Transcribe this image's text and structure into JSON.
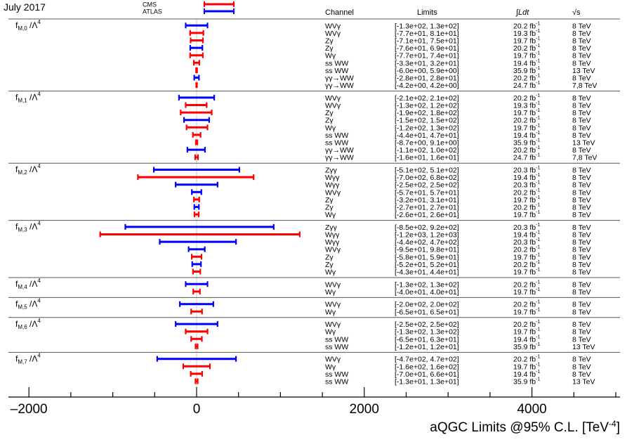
{
  "header": {
    "date": "July 2017",
    "legend": [
      {
        "label": "CMS",
        "color": "#ff0000"
      },
      {
        "label": "ATLAS",
        "color": "#0000ff"
      }
    ]
  },
  "table_headers": {
    "channel": "Channel",
    "limits": "Limits",
    "lumi": "∫Ldt",
    "energy": "√s"
  },
  "colors": {
    "CMS": "#ff0000",
    "ATLAS": "#0000ff"
  },
  "chart_data": {
    "type": "interval",
    "xlabel": "aQGC Limits @95% C.L. [TeV⁻⁴]",
    "xlim": [
      -2500,
      5000
    ],
    "xticks": [
      -2000,
      0,
      2000,
      4000
    ],
    "xtick_labels": [
      "–2000",
      "0",
      "2000",
      "4000"
    ],
    "groups": [
      {
        "label": "fM,0 /Λ4",
        "sub": "M,0",
        "rows": [
          {
            "exp": "ATLAS",
            "channel": "WVγ",
            "limits": "[-1.3e+02, 1.3e+02]",
            "lumi": "20.2 fb-1",
            "energy": "8 TeV",
            "low": -130,
            "high": 130
          },
          {
            "exp": "CMS",
            "channel": "WVγ",
            "limits": "[-7.7e+01, 8.1e+01]",
            "lumi": "19.3 fb-1",
            "energy": "8 TeV",
            "low": -77,
            "high": 81
          },
          {
            "exp": "CMS",
            "channel": "Zγ",
            "limits": "[-7.1e+01, 7.5e+01]",
            "lumi": "19.7 fb-1",
            "energy": "8 TeV",
            "low": -71,
            "high": 75
          },
          {
            "exp": "ATLAS",
            "channel": "Zγ",
            "limits": "[-7.6e+01, 6.9e+01]",
            "lumi": "20.2 fb-1",
            "energy": "8 TeV",
            "low": -76,
            "high": 69
          },
          {
            "exp": "CMS",
            "channel": "Wγ",
            "limits": "[-7.7e+01, 7.4e+01]",
            "lumi": "19.7 fb-1",
            "energy": "8 TeV",
            "low": -77,
            "high": 74
          },
          {
            "exp": "CMS",
            "channel": "ss WW",
            "limits": "[-3.3e+01, 3.2e+01]",
            "lumi": "19.4 fb-1",
            "energy": "8 TeV",
            "low": -33,
            "high": 32
          },
          {
            "exp": "CMS",
            "channel": "ss WW",
            "limits": "[-6.0e+00, 5.9e+00]",
            "lumi": "35.9 fb-1",
            "energy": "13 TeV",
            "low": -6,
            "high": 5.9
          },
          {
            "exp": "ATLAS",
            "channel": "γγ→WW",
            "limits": "[-2.8e+01, 2.8e+01]",
            "lumi": "20.2 fb-1",
            "energy": "8 TeV",
            "low": -28,
            "high": 28
          },
          {
            "exp": "CMS",
            "channel": "γγ→WW",
            "limits": "[-4.2e+00, 4.2e+00]",
            "lumi": "24.7 fb-1",
            "energy": "7,8 TeV",
            "low": -4.2,
            "high": 4.2
          }
        ]
      },
      {
        "label": "fM,1 /Λ4",
        "sub": "M,1",
        "rows": [
          {
            "exp": "ATLAS",
            "channel": "WVγ",
            "limits": "[-2.1e+02, 2.1e+02]",
            "lumi": "20.2 fb-1",
            "energy": "8 TeV",
            "low": -210,
            "high": 210
          },
          {
            "exp": "CMS",
            "channel": "WVγ",
            "limits": "[-1.3e+02, 1.2e+02]",
            "lumi": "19.3 fb-1",
            "energy": "8 TeV",
            "low": -130,
            "high": 120
          },
          {
            "exp": "CMS",
            "channel": "Zγ",
            "limits": "[-1.9e+02, 1.8e+02]",
            "lumi": "19.7 fb-1",
            "energy": "8 TeV",
            "low": -190,
            "high": 180
          },
          {
            "exp": "ATLAS",
            "channel": "Zγ",
            "limits": "[-1.5e+02, 1.5e+02]",
            "lumi": "20.2 fb-1",
            "energy": "8 TeV",
            "low": -150,
            "high": 150
          },
          {
            "exp": "CMS",
            "channel": "Wγ",
            "limits": "[-1.2e+02, 1.3e+02]",
            "lumi": "19.7 fb-1",
            "energy": "8 TeV",
            "low": -120,
            "high": 130
          },
          {
            "exp": "CMS",
            "channel": "ss WW",
            "limits": "[-4.4e+01, 4.7e+01]",
            "lumi": "19.4 fb-1",
            "energy": "8 TeV",
            "low": -44,
            "high": 47
          },
          {
            "exp": "CMS",
            "channel": "ss WW",
            "limits": "[-8.7e+00, 9.1e+00]",
            "lumi": "35.9 fb-1",
            "energy": "13 TeV",
            "low": -8.7,
            "high": 9.1
          },
          {
            "exp": "ATLAS",
            "channel": "γγ→WW",
            "limits": "[-1.1e+02, 1.0e+02]",
            "lumi": "20.2 fb-1",
            "energy": "8 TeV",
            "low": -110,
            "high": 100
          },
          {
            "exp": "CMS",
            "channel": "γγ→WW",
            "limits": "[-1.6e+01, 1.6e+01]",
            "lumi": "24.7 fb-1",
            "energy": "7,8 TeV",
            "low": -16,
            "high": 16
          }
        ]
      },
      {
        "label": "fM,2 /Λ4",
        "sub": "M,2",
        "rows": [
          {
            "exp": "ATLAS",
            "channel": "Zγγ",
            "limits": "[-5.1e+02, 5.1e+02]",
            "lumi": "20.3 fb-1",
            "energy": "8 TeV",
            "low": -510,
            "high": 510
          },
          {
            "exp": "CMS",
            "channel": "Wγγ",
            "limits": "[-7.0e+02, 6.8e+02]",
            "lumi": "19.4 fb-1",
            "energy": "8 TeV",
            "low": -700,
            "high": 680
          },
          {
            "exp": "ATLAS",
            "channel": "Wγγ",
            "limits": "[-2.5e+02, 2.5e+02]",
            "lumi": "20.3 fb-1",
            "energy": "8 TeV",
            "low": -250,
            "high": 250
          },
          {
            "exp": "ATLAS",
            "channel": "WVγ",
            "limits": "[-5.7e+01, 5.7e+01]",
            "lumi": "20.2 fb-1",
            "energy": "8 TeV",
            "low": -57,
            "high": 57
          },
          {
            "exp": "CMS",
            "channel": "Zγ",
            "limits": "[-3.2e+01, 3.1e+01]",
            "lumi": "19.7 fb-1",
            "energy": "8 TeV",
            "low": -32,
            "high": 31
          },
          {
            "exp": "ATLAS",
            "channel": "Zγ",
            "limits": "[-2.7e+01, 2.7e+01]",
            "lumi": "20.2 fb-1",
            "energy": "8 TeV",
            "low": -27,
            "high": 27
          },
          {
            "exp": "CMS",
            "channel": "Wγ",
            "limits": "[-2.6e+01, 2.6e+01]",
            "lumi": "19.7 fb-1",
            "energy": "8 TeV",
            "low": -26,
            "high": 26
          }
        ]
      },
      {
        "label": "fM,3 /Λ4",
        "sub": "M,3",
        "rows": [
          {
            "exp": "ATLAS",
            "channel": "Zγγ",
            "limits": "[-8.5e+02, 9.2e+02]",
            "lumi": "20.3 fb-1",
            "energy": "8 TeV",
            "low": -850,
            "high": 920
          },
          {
            "exp": "CMS",
            "channel": "Wγγ",
            "limits": "[-1.2e+03, 1.2e+03]",
            "lumi": "19.4 fb-1",
            "energy": "8 TeV",
            "low": -1150,
            "high": 1230
          },
          {
            "exp": "ATLAS",
            "channel": "Wγγ",
            "limits": "[-4.4e+02, 4.7e+02]",
            "lumi": "20.3 fb-1",
            "energy": "8 TeV",
            "low": -440,
            "high": 470
          },
          {
            "exp": "ATLAS",
            "channel": "WVγ",
            "limits": "[-9.5e+01, 9.8e+01]",
            "lumi": "20.2 fb-1",
            "energy": "8 TeV",
            "low": -95,
            "high": 98
          },
          {
            "exp": "CMS",
            "channel": "Zγ",
            "limits": "[-5.8e+01, 5.9e+01]",
            "lumi": "19.7 fb-1",
            "energy": "8 TeV",
            "low": -58,
            "high": 59
          },
          {
            "exp": "ATLAS",
            "channel": "Zγ",
            "limits": "[-5.2e+01, 5.2e+01]",
            "lumi": "20.2 fb-1",
            "energy": "8 TeV",
            "low": -52,
            "high": 52
          },
          {
            "exp": "CMS",
            "channel": "Wγ",
            "limits": "[-4.3e+01, 4.4e+01]",
            "lumi": "19.7 fb-1",
            "energy": "8 TeV",
            "low": -43,
            "high": 44
          }
        ]
      },
      {
        "label": "fM,4 /Λ4",
        "sub": "M,4",
        "rows": [
          {
            "exp": "ATLAS",
            "channel": "WVγ",
            "limits": "[-1.3e+02, 1.3e+02]",
            "lumi": "20.2 fb-1",
            "energy": "8 TeV",
            "low": -130,
            "high": 130
          },
          {
            "exp": "CMS",
            "channel": "Wγ",
            "limits": "[-4.0e+01, 4.0e+01]",
            "lumi": "19.7 fb-1",
            "energy": "8 TeV",
            "low": -40,
            "high": 40
          }
        ]
      },
      {
        "label": "fM,5 /Λ4",
        "sub": "M,5",
        "rows": [
          {
            "exp": "ATLAS",
            "channel": "WVγ",
            "limits": "[-2.0e+02, 2.0e+02]",
            "lumi": "20.2 fb-1",
            "energy": "8 TeV",
            "low": -200,
            "high": 200
          },
          {
            "exp": "CMS",
            "channel": "Wγ",
            "limits": "[-6.5e+01, 6.5e+01]",
            "lumi": "19.7 fb-1",
            "energy": "8 TeV",
            "low": -65,
            "high": 65
          }
        ]
      },
      {
        "label": "fM,6 /Λ4",
        "sub": "M,6",
        "rows": [
          {
            "exp": "ATLAS",
            "channel": "WVγ",
            "limits": "[-2.5e+02, 2.5e+02]",
            "lumi": "20.2 fb-1",
            "energy": "8 TeV",
            "low": -250,
            "high": 250
          },
          {
            "exp": "CMS",
            "channel": "Wγ",
            "limits": "[-1.3e+02, 1.3e+02]",
            "lumi": "19.7 fb-1",
            "energy": "8 TeV",
            "low": -130,
            "high": 130
          },
          {
            "exp": "CMS",
            "channel": "ss WW",
            "limits": "[-6.5e+01, 6.3e+01]",
            "lumi": "19.4 fb-1",
            "energy": "8 TeV",
            "low": -65,
            "high": 63
          },
          {
            "exp": "CMS",
            "channel": "ss WW",
            "limits": "[-1.2e+01, 1.2e+01]",
            "lumi": "35.9 fb-1",
            "energy": "13 TeV",
            "low": -12,
            "high": 12
          }
        ]
      },
      {
        "label": "fM,7 /Λ4",
        "sub": "M,7",
        "rows": [
          {
            "exp": "ATLAS",
            "channel": "WVγ",
            "limits": "[-4.7e+02, 4.7e+02]",
            "lumi": "20.2 fb-1",
            "energy": "8 TeV",
            "low": -470,
            "high": 470
          },
          {
            "exp": "CMS",
            "channel": "Wγ",
            "limits": "[-1.6e+02, 1.6e+02]",
            "lumi": "19.7 fb-1",
            "energy": "8 TeV",
            "low": -160,
            "high": 160
          },
          {
            "exp": "CMS",
            "channel": "ss WW",
            "limits": "[-7.0e+01, 6.6e+01]",
            "lumi": "19.4 fb-1",
            "energy": "8 TeV",
            "low": -70,
            "high": 66
          },
          {
            "exp": "CMS",
            "channel": "ss WW",
            "limits": "[-1.3e+01, 1.3e+01]",
            "lumi": "35.9 fb-1",
            "energy": "13 TeV",
            "low": -13,
            "high": 13
          }
        ]
      }
    ]
  }
}
